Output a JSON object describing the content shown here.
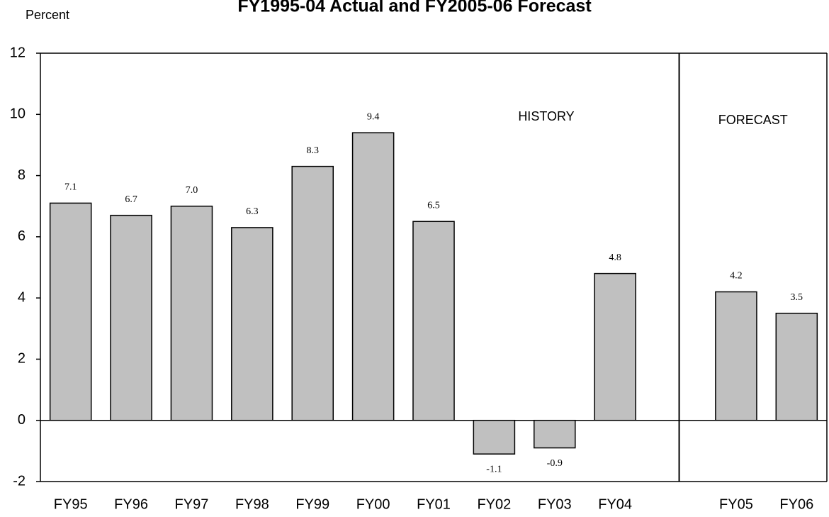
{
  "chart_data": {
    "type": "bar",
    "title": "FY1995-04 Actual and FY2005-06 Forecast",
    "y_label": "Percent",
    "categories": [
      "FY95",
      "FY96",
      "FY97",
      "FY98",
      "FY99",
      "FY00",
      "FY01",
      "FY02",
      "FY03",
      "FY04",
      null,
      "FY05",
      "FY06"
    ],
    "values": [
      7.1,
      6.7,
      7.0,
      6.3,
      8.3,
      9.4,
      6.5,
      -1.1,
      -0.9,
      4.8,
      null,
      4.2,
      3.5
    ],
    "value_labels": [
      "7.1",
      "6.7",
      "7.0",
      "6.3",
      "8.3",
      "9.4",
      "6.5",
      "-1.1",
      "-0.9",
      "4.8",
      null,
      "4.2",
      "3.5"
    ],
    "color": "#c0c0c0",
    "annotations": [
      "HISTORY",
      "FORECAST"
    ],
    "ylim": [
      -2,
      12
    ],
    "yticks": [
      -2,
      0,
      2,
      4,
      6,
      8,
      10,
      12
    ],
    "grid": false
  }
}
